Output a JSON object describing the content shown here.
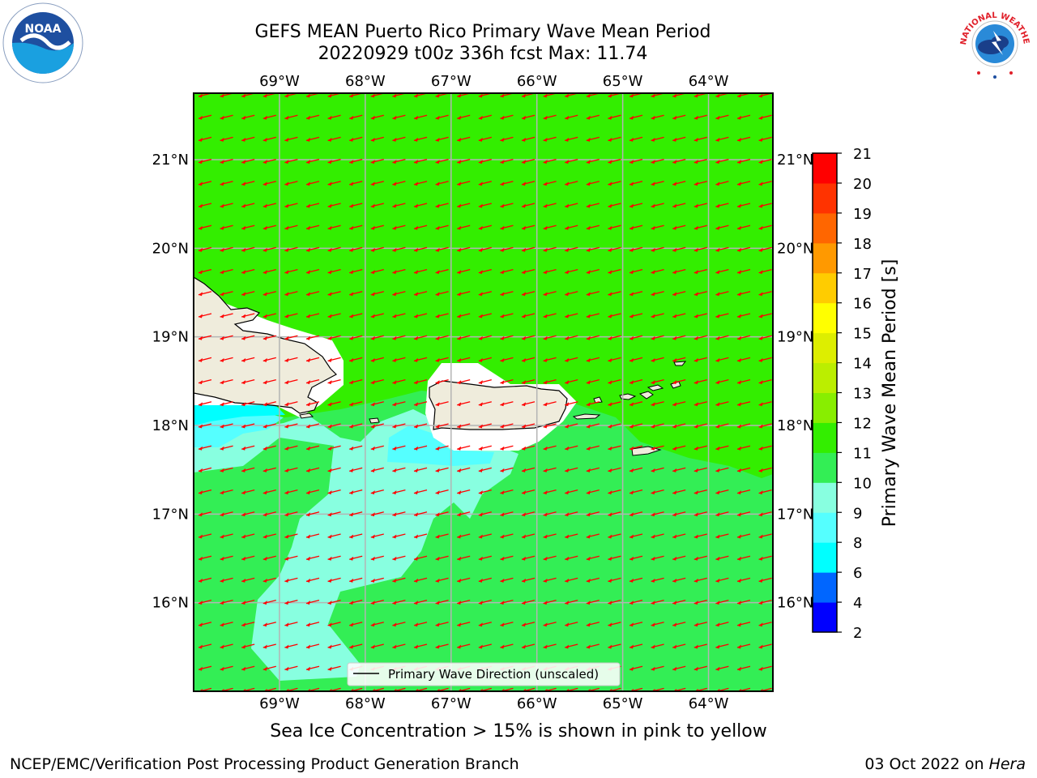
{
  "header": {
    "title_line1": "GEFS MEAN Puerto Rico Primary Wave Mean Period",
    "title_line2": "20220929 t00z 336h fcst   Max: 11.74"
  },
  "logos": {
    "left_name": "noaa-logo",
    "left_text": "NOAA",
    "right_name": "nws-logo",
    "right_text": "NATIONAL WEATHER SERVICE"
  },
  "chart_data": {
    "type": "heatmap",
    "title": "GEFS MEAN Puerto Rico Primary Wave Mean Period",
    "subtitle": "20220929 t00z 336h fcst   Max: 11.74",
    "max_value": 11.74,
    "lon_range": [
      -70.0,
      -63.25
    ],
    "lat_range": [
      15.0,
      21.75
    ],
    "lon_ticks": [
      -69,
      -68,
      -67,
      -66,
      -65,
      -64
    ],
    "lon_tick_labels": [
      "69°W",
      "68°W",
      "67°W",
      "66°W",
      "65°W",
      "64°W"
    ],
    "lat_ticks": [
      16,
      17,
      18,
      19,
      20,
      21
    ],
    "lat_tick_labels": [
      "16°N",
      "17°N",
      "18°N",
      "19°N",
      "20°N",
      "21°N"
    ],
    "grid": true,
    "colorbar": {
      "label": "Primary Wave Mean Period [s]",
      "levels": [
        2,
        4,
        6,
        8,
        9,
        10,
        11,
        12,
        13,
        14,
        15,
        16,
        17,
        18,
        19,
        20,
        21
      ],
      "colors": [
        "#0000ff",
        "#0066ff",
        "#00ffff",
        "#55ffff",
        "#88ffe0",
        "#33ee55",
        "#33ee00",
        "#88ee00",
        "#bbee00",
        "#ddee00",
        "#ffff00",
        "#ffcc00",
        "#ff9900",
        "#ff6600",
        "#ff3300",
        "#ff0000"
      ]
    },
    "field_regions": [
      {
        "name": "north-band",
        "period_range": "11-12",
        "color": "#33ee00"
      },
      {
        "name": "south-band",
        "period_range": "10-11",
        "color": "#33ee55"
      },
      {
        "name": "mona-passage-plume",
        "period_range": "9-10",
        "color": "#88ffe0"
      },
      {
        "name": "west-coastal",
        "period_range": "8-9",
        "color": "#55ffff"
      },
      {
        "name": "hispaniola-nearshore",
        "period_range": "6-8",
        "color": "#00ffff"
      }
    ],
    "wave_direction": {
      "description": "arrows pointing toward the west-southwest",
      "color": "#ff0000"
    },
    "legend": {
      "label": "Primary Wave Direction (unscaled)",
      "placement": "bottom-center"
    },
    "land": [
      "Hispaniola",
      "Puerto Rico",
      "Virgin Islands",
      "St. Croix"
    ]
  },
  "footer": {
    "note": "Sea Ice Concentration > 15% is shown in pink to yellow",
    "credit_left": "NCEP/EMC/Verification Post Processing Product Generation Branch",
    "credit_right_prefix": "03 Oct 2022 on ",
    "credit_right_machine": "Hera"
  }
}
